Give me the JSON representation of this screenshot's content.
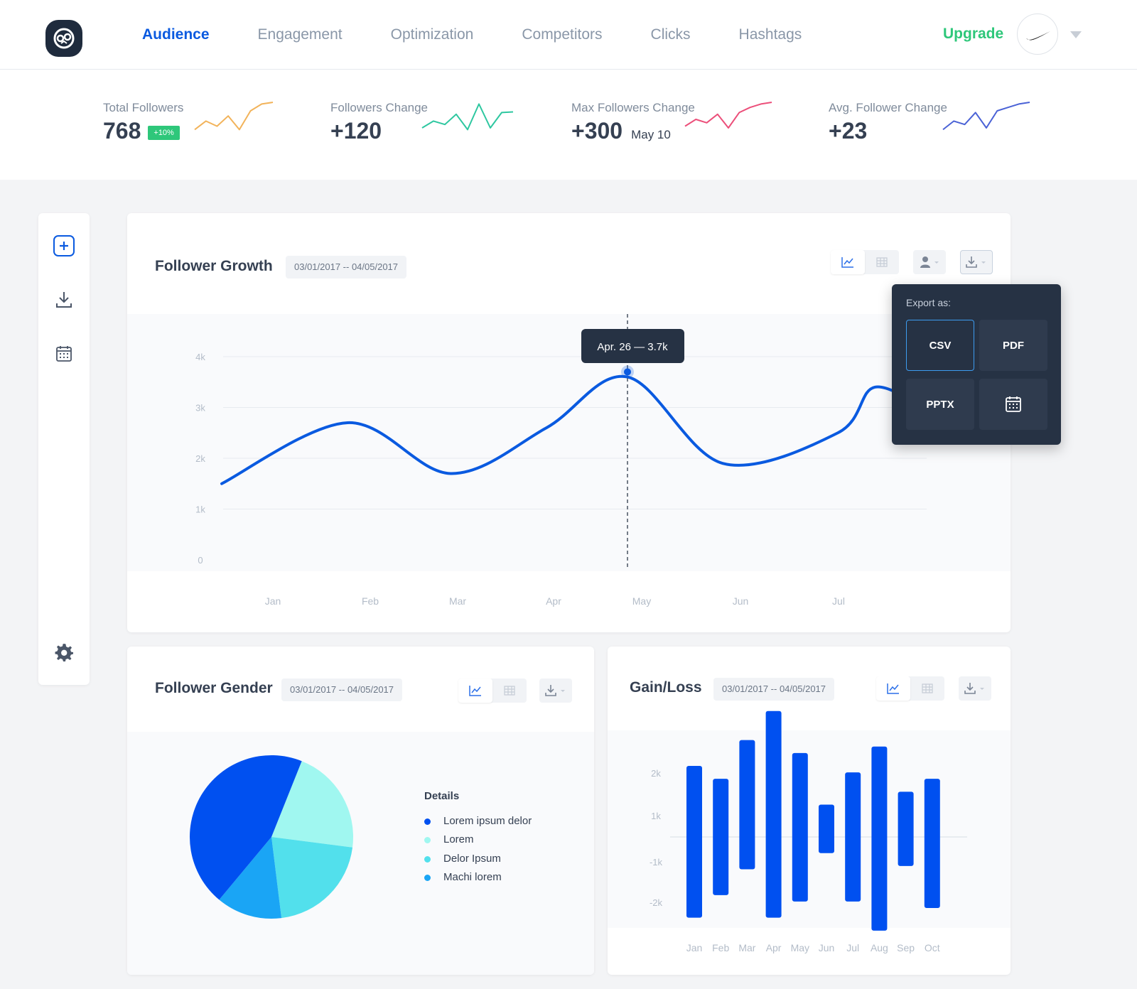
{
  "header": {
    "nav": [
      {
        "label": "Audience",
        "active": true
      },
      {
        "label": "Engagement",
        "active": false
      },
      {
        "label": "Optimization",
        "active": false
      },
      {
        "label": "Competitors",
        "active": false
      },
      {
        "label": "Clicks",
        "active": false
      },
      {
        "label": "Hashtags",
        "active": false
      }
    ],
    "upgrade_label": "Upgrade"
  },
  "stats": [
    {
      "label": "Total Followers",
      "value": "768",
      "badge": "+10%",
      "spark_color": "#f2b35a",
      "spark": [
        0.2,
        0.45,
        0.3,
        0.6,
        0.2,
        0.75,
        0.95,
        1.0
      ]
    },
    {
      "label": "Followers Change",
      "value": "+120",
      "spark_color": "#2ec7a0",
      "spark": [
        0.25,
        0.45,
        0.35,
        0.65,
        0.2,
        0.95,
        0.25,
        0.7,
        0.72
      ]
    },
    {
      "label": "Max Followers Change",
      "value": "+300",
      "sub": "May 10",
      "spark_color": "#ec4f7a",
      "spark": [
        0.3,
        0.5,
        0.4,
        0.65,
        0.25,
        0.7,
        0.85,
        0.95,
        1.0
      ]
    },
    {
      "label": "Avg. Follower Change",
      "value": "+23",
      "spark_color": "#4a62d6",
      "spark": [
        0.2,
        0.45,
        0.35,
        0.7,
        0.25,
        0.75,
        0.85,
        0.95,
        1.0
      ]
    }
  ],
  "sidebar": {
    "icons": [
      "plus-icon",
      "download-icon",
      "calendar-icon",
      "gear-icon"
    ]
  },
  "growth": {
    "title": "Follower Growth",
    "date_range": "03/01/2017 -- 04/05/2017",
    "tooltip": "Apr. 26  —  3.7k",
    "chart_data": {
      "type": "line",
      "title": "Follower Growth",
      "x_ticks": [
        "Jan",
        "Feb",
        "Mar",
        "Apr",
        "May",
        "Jun",
        "Jul"
      ],
      "y_ticks": [
        "0",
        "1k",
        "2k",
        "3k",
        "4k"
      ],
      "ylim": [
        0,
        4000
      ],
      "series": [
        {
          "points": [
            [
              "Jan",
              1500
            ],
            [
              "Feb",
              2700
            ],
            [
              "Mar",
              1700
            ],
            [
              "Apr",
              2600
            ],
            [
              "May",
              3600
            ],
            [
              "May-Jun",
              1900
            ],
            [
              "Jun",
              2500
            ],
            [
              "Jul",
              3400
            ],
            [
              "Jul+",
              2900
            ]
          ]
        }
      ],
      "highlight": {
        "label": "Apr. 26",
        "value": 3700
      },
      "grid": true
    }
  },
  "export_menu": {
    "title": "Export as:",
    "options": [
      "CSV",
      "PDF",
      "PPTX"
    ],
    "selected": "CSV"
  },
  "gender": {
    "title": "Follower Gender",
    "date_range": "03/01/2017 -- 04/05/2017",
    "chart_data": {
      "type": "pie",
      "legend_title": "Details",
      "slices": [
        {
          "name": "Lorem ipsum delor",
          "value": 45,
          "color": "#0050f0"
        },
        {
          "name": "Lorem",
          "value": 21,
          "color": "#a0f7f0"
        },
        {
          "name": "Delor Ipsum",
          "value": 21,
          "color": "#52e0ec"
        },
        {
          "name": "Machi lorem",
          "value": 13,
          "color": "#1aa5f5"
        }
      ]
    }
  },
  "gainloss": {
    "title": "Gain/Loss",
    "date_range": "03/01/2017 -- 04/05/2017",
    "chart_data": {
      "type": "bar",
      "categories": [
        "Jan",
        "Feb",
        "Mar",
        "Apr",
        "May",
        "Jun",
        "Jul",
        "Aug",
        "Sep",
        "Oct"
      ],
      "gain": [
        1100,
        900,
        1500,
        1950,
        1300,
        500,
        1000,
        1400,
        700,
        900
      ],
      "loss": [
        -1250,
        -900,
        -500,
        -1250,
        -1000,
        -250,
        -1000,
        -1450,
        -450,
        -1100
      ],
      "y_ticks": [
        "2k",
        "1k",
        "-1k",
        "-2k"
      ],
      "ylim": [
        -2200,
        2200
      ],
      "color": "#0050f0"
    }
  }
}
